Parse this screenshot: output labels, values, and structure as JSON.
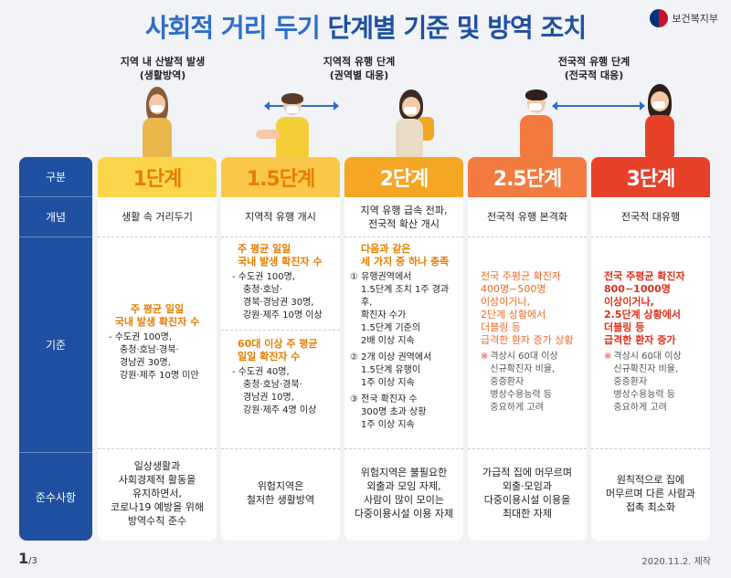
{
  "title": {
    "part1": "사회적 거리 두기",
    "part2": "단계별 기준 및 방역 조치"
  },
  "ministry": "보건복지부",
  "stage_labels": {
    "life": "지역 내 산발적 발생\n(생활방역)",
    "regional": "지역적 유행 단계\n(권역별 대응)",
    "national": "전국적 유행 단계\n(전국적 대응)"
  },
  "row_labels": {
    "category": "구분",
    "concept": "개념",
    "criteria": "기준",
    "compliance": "준수사항"
  },
  "colors": {
    "navy": "#1f4fa0",
    "blue": "#2b6ec9",
    "lv1": "#fbd64d",
    "lv15": "#f9c74a",
    "lv2": "#f5a623",
    "lv25": "#f47b3f",
    "lv3": "#e8412a"
  },
  "levels": [
    {
      "name": "1단계",
      "concept": "생활 속 거리두기",
      "criteria_head": "주 평균 일일\n국내 발생 확진자 수",
      "criteria_items": [
        "- 수도권 100명,",
        "충청·호남·경북·",
        "경남권 30명,",
        "강원·제주 10명 미만"
      ],
      "compliance": "일상생활과\n사회경제적 활동을\n유지하면서,\n코로나19 예방을 위해\n방역수칙 준수"
    },
    {
      "name": "1.5단계",
      "concept": "지역적 유행 개시",
      "criteria_head": "주 평균 일일\n국내 발생 확진자 수",
      "criteria_items": [
        "- 수도권 100명,",
        "충청·호남·",
        "경북·경남권 30명,",
        "강원·제주 10명 이상"
      ],
      "criteria_head2": "60대 이상 주 평균\n일일 확진자 수",
      "criteria_items2": [
        "- 수도권 40명,",
        "충청·호남·경북·",
        "경남권 10명,",
        "강원·제주 4명 이상"
      ],
      "compliance": "위험지역은\n철저한 생활방역"
    },
    {
      "name": "2단계",
      "concept": "지역 유행 급속 전파,\n전국적 확산 개시",
      "criteria_head": "다음과 같은\n세 가지 중 하나 충족",
      "criteria_items": [
        "① 유행권역에서",
        "1.5단계 조치 1주 경과 후,",
        "확진자 수가",
        "1.5단계 기준의",
        "2배 이상 지속",
        "② 2개 이상 권역에서",
        "1.5단계 유행이",
        "1주 이상 지속",
        "③ 전국 확진자 수",
        "300명 초과 상황",
        "1주 이상 지속"
      ],
      "compliance": "위험지역은 불필요한\n외출과 모임 자제,\n사람이 많이 모이는\n다중이용시설 이용 자제"
    },
    {
      "name": "2.5단계",
      "concept": "전국적 유행 본격화",
      "criteria_head": "전국 주평균 확진자\n400명~500명\n이상이거나,\n2단계 상황에서\n더블링 등\n급격한 환자 증가 상황",
      "note_mark": "※",
      "note": "격상시 60대 이상\n신규확진자 비율,\n중증환자\n병상수용능력 등\n중요하게 고려",
      "compliance": "가급적 집에 머무르며\n외출·모임과\n다중이용시설 이용을\n최대한 자제"
    },
    {
      "name": "3단계",
      "concept": "전국적 대유행",
      "criteria_head": "전국 주평균 확진자\n800~1000명\n이상이거나,\n2.5단계 상황에서\n더블링 등\n급격한 환자 증가",
      "note_mark": "※",
      "note": "격상시 60대 이상\n신규확진자 비율,\n중증환자\n병상수용능력 등\n중요하게 고려",
      "compliance": "원칙적으로 집에\n머무르며 다른 사람과\n접촉 최소화"
    }
  ],
  "footer": {
    "page": "1",
    "total": "/3",
    "date": "2020.11.2. 제작"
  }
}
